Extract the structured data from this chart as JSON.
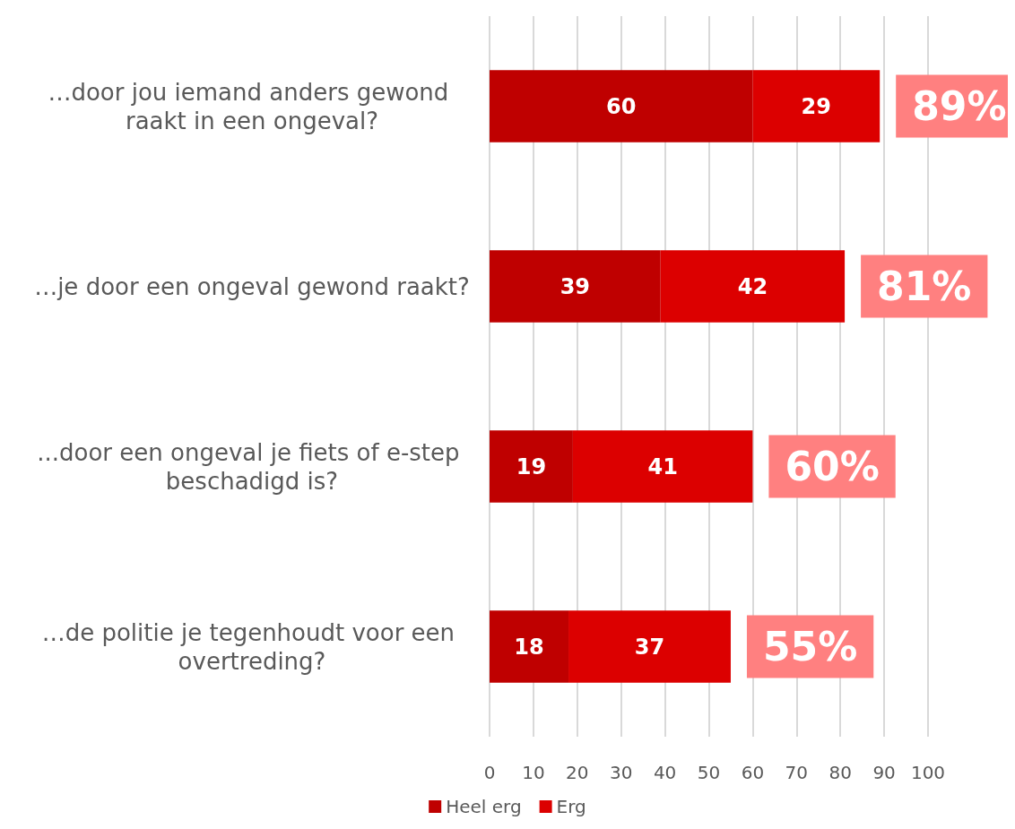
{
  "chart_data": {
    "type": "bar",
    "orientation": "horizontal",
    "stacked": true,
    "categories": [
      "…door jou iemand anders gewond raakt in een ongeval?",
      "…je door een ongeval gewond raakt?",
      "...door een ongeval je fiets of e-step beschadigd is?",
      "…de politie je tegenhoudt voor een overtreding?"
    ],
    "series": [
      {
        "name": "Heel erg",
        "color": "#bf0000",
        "values": [
          60,
          39,
          19,
          18
        ]
      },
      {
        "name": "Erg",
        "color": "#dc0000",
        "values": [
          29,
          42,
          41,
          37
        ]
      }
    ],
    "totals": [
      "89%",
      "81%",
      "60%",
      "55%"
    ],
    "xlim": [
      0,
      100
    ],
    "xticks": [
      0,
      10,
      20,
      30,
      40,
      50,
      60,
      70,
      80,
      90,
      100
    ],
    "grid": "x",
    "legend": "bottom",
    "data_labels": true
  }
}
